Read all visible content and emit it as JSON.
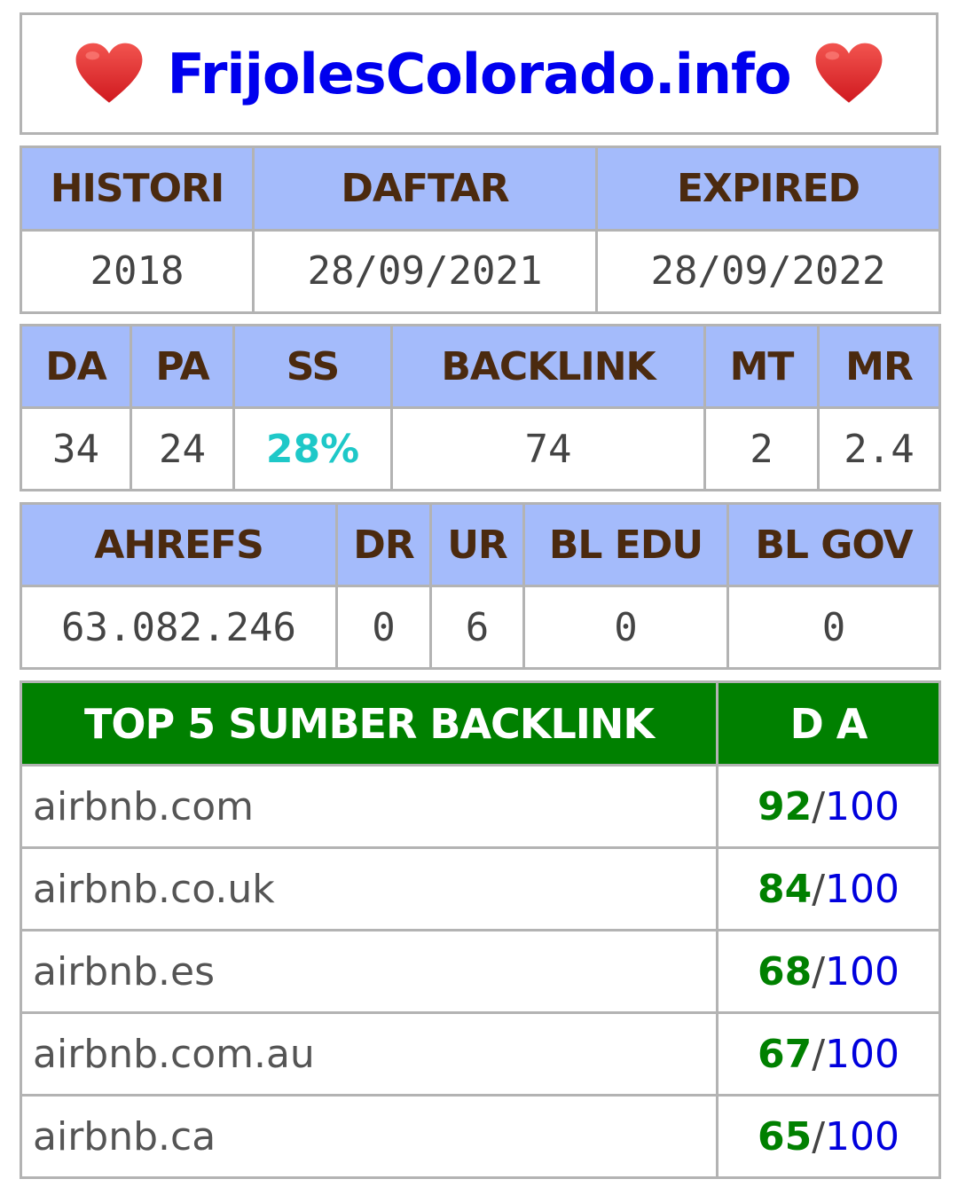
{
  "title": {
    "text": "FrijolesColorado.info",
    "left_icon": "heart-icon",
    "right_icon": "heart-icon",
    "heart_color": "#e8232b",
    "text_color": "#0000ee"
  },
  "registration": {
    "headers": [
      "HISTORI",
      "DAFTAR",
      "EXPIRED"
    ],
    "values": [
      "2018",
      "28/09/2021",
      "28/09/2022"
    ]
  },
  "moz": {
    "headers": [
      "DA",
      "PA",
      "SS",
      "BACKLINK",
      "MT",
      "MR"
    ],
    "values": [
      "34",
      "24",
      "28%",
      "74",
      "2",
      "2.4"
    ]
  },
  "ahrefs": {
    "headers": [
      "AHREFS",
      "DR",
      "UR",
      "BL EDU",
      "BL GOV"
    ],
    "values": [
      "63.082.246",
      "0",
      "6",
      "0",
      "0"
    ]
  },
  "backlinks": {
    "headers": [
      "TOP 5 SUMBER BACKLINK",
      "D A"
    ],
    "rows": [
      {
        "site": "airbnb.com",
        "score": "92",
        "sep": "/",
        "max": "100"
      },
      {
        "site": "airbnb.co.uk",
        "score": "84",
        "sep": "/",
        "max": "100"
      },
      {
        "site": "airbnb.es",
        "score": "68",
        "sep": "/",
        "max": "100"
      },
      {
        "site": "airbnb.com.au",
        "score": "67",
        "sep": "/",
        "max": "100"
      },
      {
        "site": "airbnb.ca",
        "score": "65",
        "sep": "/",
        "max": "100"
      }
    ]
  },
  "colors": {
    "header_bg": "#a4bbfb",
    "header_text": "#4b2a0f",
    "border": "#b3b3b3",
    "ss_value": "#1ec8c8",
    "backlink_header_bg": "#008000",
    "score_green": "#008000",
    "score_blue": "#0000dd"
  }
}
